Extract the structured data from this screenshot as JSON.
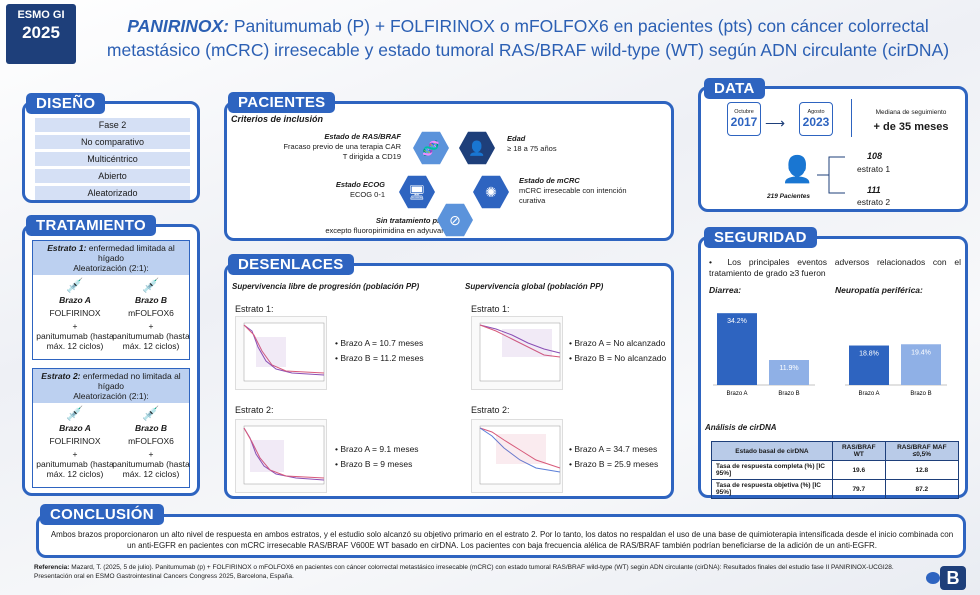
{
  "badge": {
    "line1": "ESMO GI",
    "line2": "2025"
  },
  "title": {
    "highlight": "PANIRINOX:",
    "rest": " Panitumumab (P) + FOLFIRINOX o mFOLFOX6 en pacientes (pts) con cáncer colorrectal metastásico (mCRC) irresecable y estado tumoral RAS/BRAF wild-type (WT) según ADN circulante (cirDNA)"
  },
  "diseno": {
    "title": "DISEÑO",
    "items": [
      "Fase 2",
      "No comparativo",
      "Multicéntrico",
      "Abierto",
      "Aleatorizado"
    ]
  },
  "tratamiento": {
    "title": "TRATAMIENTO",
    "estrato1": {
      "label": "Estrato 1:",
      "text": " enfermedad limitada al hígado",
      "rand": "Aleatorización (2:1):"
    },
    "estrato2": {
      "label": "Estrato 2:",
      "text": " enfermedad no limitada al hígado",
      "rand": "Aleatorización (2:1):"
    },
    "armA": {
      "name": "Brazo A",
      "drug": "FOLFIRINOX",
      "plus": "+",
      "p": "panitumumab (hasta máx. 12 ciclos)"
    },
    "armB": {
      "name": "Brazo B",
      "drug": "mFOLFOX6",
      "plus": "+",
      "p": "panitumumab (hasta máx. 12 ciclos)"
    }
  },
  "pacientes": {
    "title": "PACIENTES",
    "criterios": "Criterios de inclusión",
    "c1": {
      "h": "Estado de RAS/BRAF",
      "t": "Fracaso previo de una terapia CAR T dirigida a CD19"
    },
    "c2": {
      "h": "Edad",
      "t": "≥ 18 a 75 años"
    },
    "c3": {
      "h": "Estado ECOG",
      "t": "ECOG 0-1"
    },
    "c4": {
      "h": "Estado de mCRC",
      "t": "mCRC irresecable con intención curativa"
    },
    "c5": {
      "h": "Sin tratamiento previo",
      "t": "excepto fluoropirimidina en adyuvancia"
    }
  },
  "data": {
    "title": "DATA",
    "start_month": "Octubre",
    "start_year": "2017",
    "end_month": "Agosto",
    "end_year": "2023",
    "mediana": "Mediana de seguimiento",
    "mediana_val": "+ de 35 meses",
    "patients": "219 Pacientes",
    "e1n": "108",
    "e1": "estrato 1",
    "e2n": "111",
    "e2": "estrato 2"
  },
  "desenlaces": {
    "title": "DESENLACES",
    "pfs": "Supervivencia libre de progresión (población PP)",
    "os": "Supervivencia global (población PP)",
    "e1": "Estrato 1:",
    "e2": "Estrato 2:",
    "pfs1a": "Brazo A = 10.7 meses",
    "pfs1b": "Brazo B = 11.2 meses",
    "pfs2a": "Brazo A = 9.1 meses",
    "pfs2b": "Brazo B = 9 meses",
    "os1a": "Brazo A = No alcanzado",
    "os1b": "Brazo B = No alcanzado",
    "os2a": "Brazo A = 34.7 meses",
    "os2b": "Brazo B = 25.9 meses"
  },
  "seguridad": {
    "title": "SEGURIDAD",
    "intro": "Los principales eventos adversos relacionados con el tratamiento de grado ≥3 fueron",
    "diarrea": "Diarrea:",
    "neuro": "Neuropatía periférica:",
    "cirdna": "Análisis de cirDNA"
  },
  "chart_data": [
    {
      "type": "bar",
      "title": "Diarrea:",
      "categories": [
        "Brazo A",
        "Brazo B"
      ],
      "values": [
        34.2,
        11.9
      ],
      "labels": [
        "34.2%",
        "11.9%"
      ]
    },
    {
      "type": "bar",
      "title": "Neuropatía periférica:",
      "categories": [
        "Brazo A",
        "Brazo B"
      ],
      "values": [
        18.8,
        19.4
      ],
      "labels": [
        "18.8%",
        "19.4%"
      ]
    }
  ],
  "cirdna_table": {
    "headers": [
      "Estado basal de cirDNA",
      "RAS/BRAF WT",
      "RAS/BRAF MAF ≤0,5%"
    ],
    "rows": [
      [
        "Tasa de respuesta completa (%) [IC 95%]",
        "19.6",
        "12.8"
      ],
      [
        "Tasa de respuesta objetiva (%) [IC 95%]",
        "79.7",
        "87.2"
      ]
    ]
  },
  "conclusion": {
    "title": "CONCLUSIÓN",
    "text": "Ambos brazos proporcionaron un alto nivel de respuesta en ambos estratos, y el estudio solo alcanzó su objetivo primario en el estrato 2. Por lo tanto, los datos no respaldan el uso de una base de quimioterapia intensificada desde el inicio combinada con un anti-EGFR en pacientes con mCRC irresecable RAS/BRAF V600E WT basado en cirDNA. Los pacientes con baja frecuencia alélica de RAS/BRAF también podrían beneficiarse de la adición de un anti-EGFR."
  },
  "referencia": {
    "label": "Referencia:",
    "text": " Mazard, T. (2025, 5 de julio). Panitumumab (p) + FOLFIRINOX o mFOLFOX6 en pacientes con cáncer colorrectal metastásico irresecable (mCRC) con estado tumoral RAS/BRAF wild-type (WT) según ADN circulante (cirDNA): Resultados finales del estudio fase II PANIRINOX-UCGI28. Presentación oral en ESMO Gastrointestinal Cancers Congress 2025, Barcelona, España."
  },
  "colors": {
    "primary": "#2e64c0",
    "dark": "#1e3f7a",
    "bar": "#2e64c0",
    "barlight": "#8fb0e6",
    "armA": "#8a4fb5",
    "armB": "#d85a7a"
  }
}
